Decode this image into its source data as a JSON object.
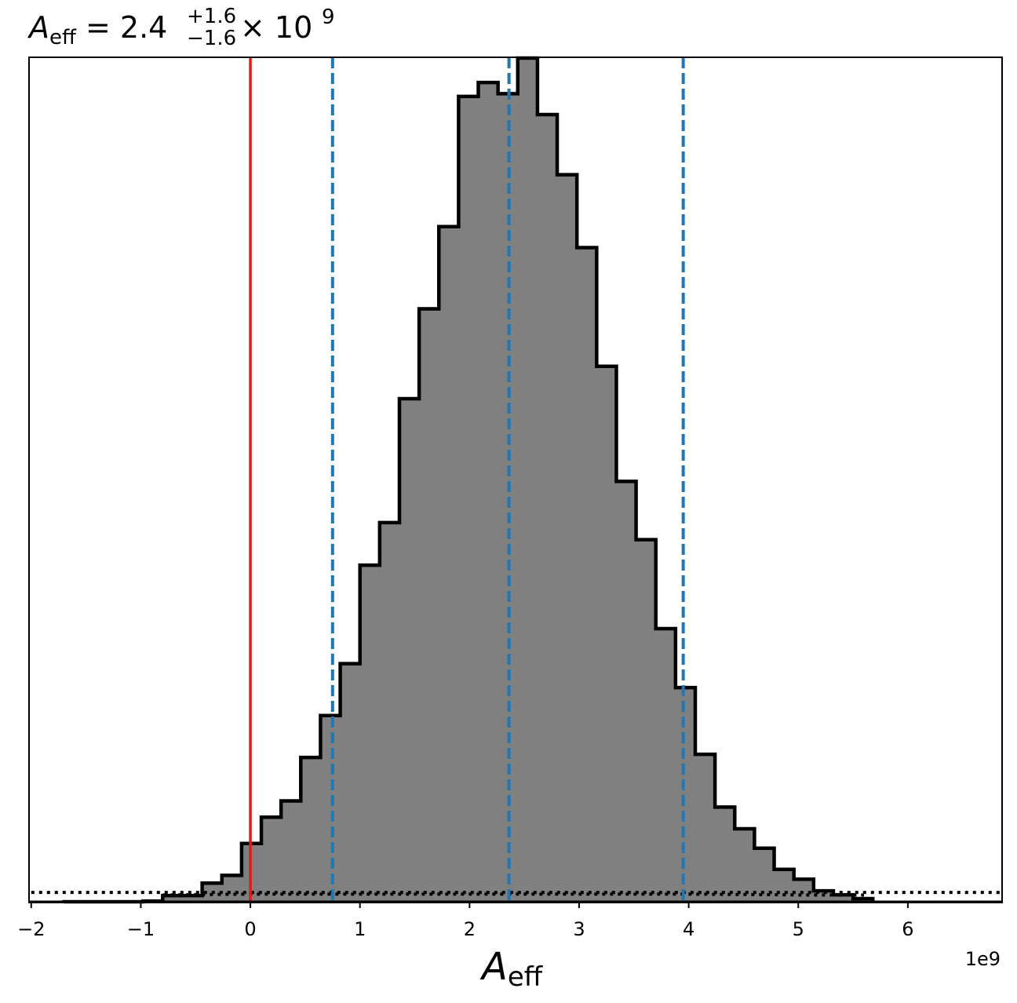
{
  "chart_data": {
    "type": "bar",
    "title": {
      "symbol": "A",
      "subscript": "eff",
      "equals": " = 2.4",
      "sup": "+1.6",
      "sub": "−1.6",
      "times": " × 10",
      "exp": "9"
    },
    "xlabel": {
      "symbol": "A",
      "subscript": "eff"
    },
    "offset_text": "1e9",
    "xlim": [
      -2.02,
      6.86
    ],
    "ylim": [
      0,
      1.0
    ],
    "yticks_visible": false,
    "x_ticks": [
      {
        "value": -2,
        "label": "−2"
      },
      {
        "value": -1,
        "label": "−1"
      },
      {
        "value": 0,
        "label": "0"
      },
      {
        "value": 1,
        "label": "1"
      },
      {
        "value": 2,
        "label": "2"
      },
      {
        "value": 3,
        "label": "3"
      },
      {
        "value": 4,
        "label": "4"
      },
      {
        "value": 5,
        "label": "5"
      },
      {
        "value": 6,
        "label": "6"
      }
    ],
    "histogram": {
      "fill_color": "#808080",
      "edge_color": "#000000",
      "bin_edges": [
        -1.7,
        -1.52,
        -1.34,
        -1.16,
        -0.98,
        -0.8,
        -0.62,
        -0.44,
        -0.26,
        -0.08,
        0.1,
        0.28,
        0.46,
        0.64,
        0.82,
        1.0,
        1.18,
        1.36,
        1.54,
        1.72,
        1.9,
        2.08,
        2.26,
        2.44,
        2.62,
        2.8,
        2.98,
        3.16,
        3.34,
        3.52,
        3.7,
        3.88,
        4.06,
        4.24,
        4.42,
        4.6,
        4.78,
        4.96,
        5.14,
        5.32,
        5.5,
        5.68
      ],
      "heights": [
        0.0009,
        0.0009,
        0.0009,
        0.0009,
        0.0018,
        0.0083,
        0.0083,
        0.023,
        0.0322,
        0.0699,
        0.1011,
        0.1204,
        0.1718,
        0.2214,
        0.2829,
        0.3995,
        0.4499,
        0.5967,
        0.7031,
        0.8004,
        0.9546,
        0.9711,
        0.9578,
        1.0,
        0.9331,
        0.8619,
        0.7756,
        0.635,
        0.4987,
        0.4297,
        0.3243,
        0.2545,
        0.1755,
        0.113,
        0.0874,
        0.0644,
        0.0393,
        0.0276,
        0.0138,
        0.0092,
        0.0046
      ]
    },
    "reference_lines": [
      {
        "x": 0.0,
        "color": "#e41a1c",
        "style": "solid"
      },
      {
        "x": 0.75,
        "color": "#1f77b4",
        "style": "dashed"
      },
      {
        "x": 2.36,
        "color": "#1f77b4",
        "style": "dashed"
      },
      {
        "x": 3.95,
        "color": "#1f77b4",
        "style": "dashed"
      }
    ],
    "dotted_curves": [
      {
        "color": "#000000",
        "x": [
          -2.0,
          6.86
        ],
        "y": [
          0.012,
          0.012
        ]
      },
      {
        "color": "#000000",
        "x": [
          -0.8,
          0.0,
          1.0,
          2.0,
          3.0,
          4.0,
          5.0,
          5.6
        ],
        "y": [
          0.009,
          0.01,
          0.01,
          0.01,
          0.01,
          0.01,
          0.009,
          0.009
        ]
      }
    ]
  }
}
